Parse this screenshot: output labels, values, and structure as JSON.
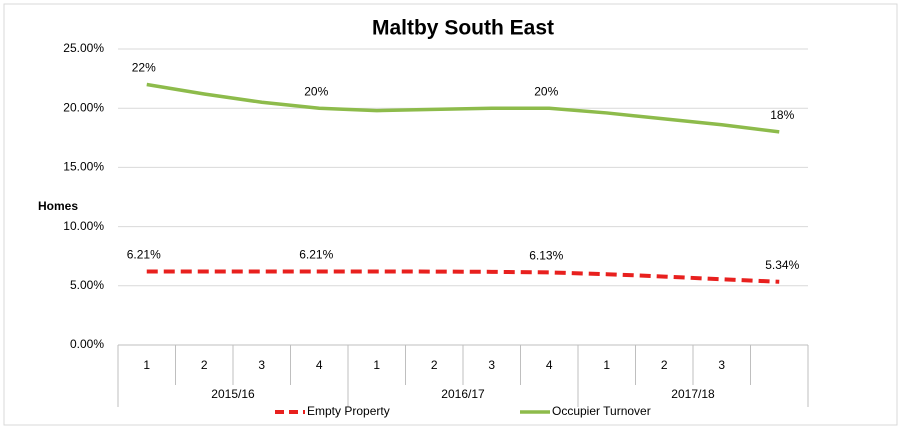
{
  "chart_data": {
    "type": "line",
    "title": "Maltby South East",
    "y_label": "Homes",
    "categories": [
      "1",
      "2",
      "3",
      "4",
      "1",
      "2",
      "3",
      "4",
      "1",
      "2",
      "3",
      null
    ],
    "groups": [
      "2015/16",
      "2016/17",
      "2017/18"
    ],
    "series": [
      {
        "name": "Empty Property",
        "color": "#e8201e",
        "dashed": true,
        "values": [
          6.21,
          6.21,
          6.21,
          6.21,
          6.21,
          6.2,
          6.18,
          6.13,
          5.98,
          5.78,
          5.55,
          5.34
        ],
        "value_labels": [
          "6.21%",
          null,
          null,
          "6.21%",
          null,
          null,
          null,
          "6.13%",
          null,
          null,
          null,
          "5.34%"
        ]
      },
      {
        "name": "Occupier Turnover",
        "color": "#8dbb4b",
        "dashed": false,
        "values": [
          22,
          21.2,
          20.5,
          20,
          19.8,
          19.9,
          20,
          20,
          19.6,
          19.1,
          18.6,
          18
        ],
        "value_labels": [
          "22%",
          null,
          null,
          "20%",
          null,
          null,
          null,
          "20%",
          null,
          null,
          null,
          "18%"
        ]
      }
    ],
    "ylim": [
      0,
      25
    ],
    "yticks": [
      {
        "value": 0,
        "label": "0.00%"
      },
      {
        "value": 5,
        "label": "5.00%"
      },
      {
        "value": 10,
        "label": "10.00%"
      },
      {
        "value": 15,
        "label": "15.00%"
      },
      {
        "value": 20,
        "label": "20.00%"
      },
      {
        "value": 25,
        "label": "25.00%"
      }
    ],
    "grid": true,
    "legend": "bottom"
  }
}
